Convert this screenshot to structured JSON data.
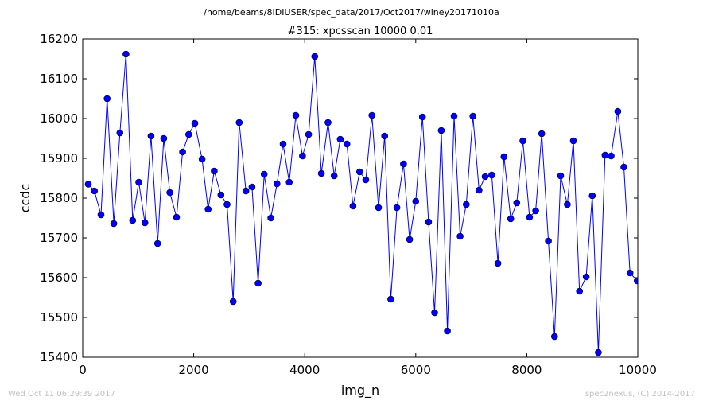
{
  "suptitle": "/home/beams/8IDIUSER/spec_data/2017/Oct2017/winey20171010a",
  "footer": {
    "left": "Wed Oct 11 06:29:39 2017",
    "right": "spec2nexus, (C) 2014-2017"
  },
  "colors": {
    "series": "#0000ff",
    "marker_fill": "#0000ff",
    "marker_edge": "#000000"
  },
  "chart_data": {
    "type": "line",
    "title": "#315: xpcsscan 10000 0.01",
    "xlabel": "img_n",
    "ylabel": "ccdc",
    "xlim": [
      0,
      10000
    ],
    "ylim": [
      15400,
      16200
    ],
    "xticks": [
      0,
      2000,
      4000,
      6000,
      8000,
      10000
    ],
    "yticks": [
      15400,
      15500,
      15600,
      15700,
      15800,
      15900,
      16000,
      16100,
      16200
    ],
    "grid": false,
    "legend": "none",
    "series": [
      {
        "x": [
          100,
          210,
          330,
          440,
          560,
          670,
          780,
          900,
          1010,
          1120,
          1230,
          1350,
          1460,
          1570,
          1690,
          1800,
          1910,
          2020,
          2150,
          2260,
          2370,
          2490,
          2600,
          2710,
          2820,
          2940,
          3050,
          3160,
          3270,
          3390,
          3500,
          3610,
          3720,
          3840,
          3960,
          4070,
          4180,
          4300,
          4420,
          4530,
          4640,
          4760,
          4870,
          4990,
          5100,
          5210,
          5330,
          5440,
          5550,
          5660,
          5780,
          5890,
          6000,
          6120,
          6230,
          6340,
          6460,
          6570,
          6690,
          6800,
          6910,
          7030,
          7140,
          7250,
          7370,
          7480,
          7590,
          7710,
          7820,
          7930,
          8050,
          8160,
          8270,
          8390,
          8500,
          8610,
          8730,
          8840,
          8950,
          9070,
          9180,
          9290,
          9410,
          9520,
          9640,
          9750,
          9860,
          9990
        ],
        "y": [
          15835,
          15818,
          15758,
          16050,
          15736,
          15964,
          16162,
          15744,
          15840,
          15738,
          15956,
          15686,
          15950,
          15814,
          15752,
          15916,
          15960,
          15988,
          15898,
          15772,
          15868,
          15808,
          15784,
          15540,
          15990,
          15818,
          15828,
          15586,
          15860,
          15750,
          15836,
          15936,
          15840,
          16008,
          15906,
          15960,
          16156,
          15862,
          15990,
          15856,
          15948,
          15936,
          15780,
          15866,
          15846,
          16008,
          15776,
          15956,
          15546,
          15776,
          15886,
          15696,
          15792,
          16004,
          15740,
          15512,
          15970,
          15466,
          16006,
          15704,
          15784,
          16006,
          15820,
          15854,
          15858,
          15636,
          15904,
          15748,
          15788,
          15944,
          15752,
          15768,
          15962,
          15692,
          15452,
          15856,
          15784,
          15944,
          15566,
          15602,
          15806,
          15412,
          15908,
          15906,
          16018,
          15878,
          15612,
          15592
        ]
      }
    ]
  }
}
